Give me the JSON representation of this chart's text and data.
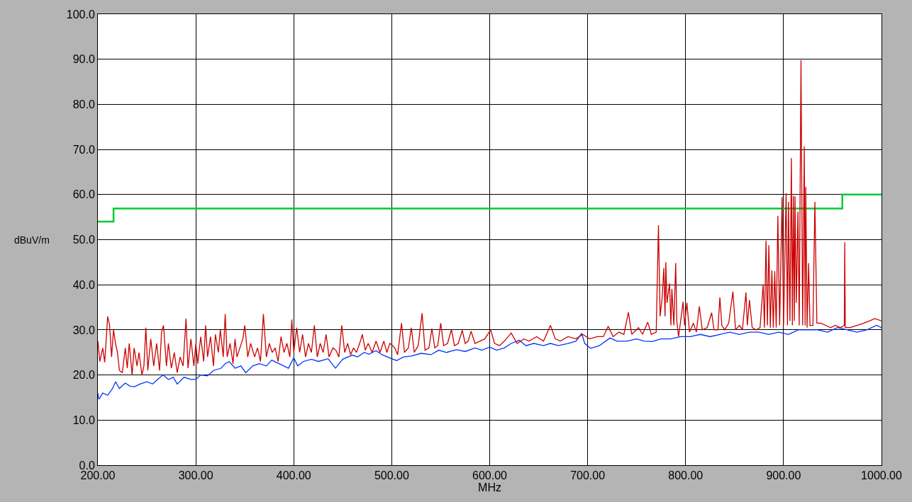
{
  "chart_data": {
    "type": "line",
    "xlabel": "MHz",
    "ylabel": "dBuV/m",
    "grid": true,
    "marker": "none",
    "line_style": "solid",
    "xlim": [
      200,
      1000
    ],
    "ylim": [
      0,
      100
    ],
    "xticks": [
      {
        "value": 200,
        "label": "200.00"
      },
      {
        "value": 300,
        "label": "300.00"
      },
      {
        "value": 400,
        "label": "400.00"
      },
      {
        "value": 500,
        "label": "500.00"
      },
      {
        "value": 600,
        "label": "600.00"
      },
      {
        "value": 700,
        "label": "700.00"
      },
      {
        "value": 800,
        "label": "800.00"
      },
      {
        "value": 900,
        "label": "900.00"
      },
      {
        "value": 1000,
        "label": "1000.00"
      }
    ],
    "yticks": [
      {
        "value": 0,
        "label": "0.0"
      },
      {
        "value": 10,
        "label": "10.0"
      },
      {
        "value": 20,
        "label": "20.0"
      },
      {
        "value": 30,
        "label": "30.0"
      },
      {
        "value": 40,
        "label": "40.0"
      },
      {
        "value": 50,
        "label": "50.0"
      },
      {
        "value": 60,
        "label": "60.0"
      },
      {
        "value": 70,
        "label": "70.0"
      },
      {
        "value": 80,
        "label": "80.0"
      },
      {
        "value": 90,
        "label": "90.0"
      },
      {
        "value": 100,
        "label": "100.0"
      }
    ],
    "series": [
      {
        "type": "step",
        "color": "#00cc33",
        "x": [
          200,
          216,
          960,
          1000
        ],
        "values": [
          54,
          56.9,
          60,
          60
        ]
      },
      {
        "color": "#0033ff",
        "x": [
          200,
          201,
          205,
          210,
          215,
          218,
          222,
          228,
          233,
          237.6,
          243,
          250,
          256,
          262,
          266.6,
          272,
          277,
          281,
          288,
          295,
          300,
          305,
          312,
          318,
          325.8,
          330,
          334,
          340,
          346,
          351,
          358,
          365,
          372,
          377.5,
          385,
          394.6,
          400,
          404,
          410,
          418,
          425,
          435,
          442.6,
          450,
          459.7,
          465,
          472,
          476.6,
          484,
          490,
          500,
          505,
          512,
          520,
          530,
          540,
          548,
          556,
          566,
          575,
          585,
          592,
          600,
          607,
          615,
          622,
          630,
          637,
          645,
          655,
          662,
          670,
          680,
          688,
          694,
          697,
          703,
          712,
          722.8,
          730,
          740,
          750,
          758,
          766,
          775,
          785,
          795,
          805,
          815,
          825,
          835,
          845,
          855,
          865,
          875,
          885,
          895,
          905,
          915,
          925,
          935,
          945,
          955,
          965,
          975,
          985,
          995,
          1000
        ],
        "values": [
          15.9,
          14.6,
          16,
          15.5,
          17,
          18.5,
          17,
          18.2,
          17.5,
          17.4,
          18,
          18.5,
          18,
          19.2,
          20,
          19,
          19.5,
          18,
          19.5,
          19,
          19,
          20,
          19.8,
          21,
          21.5,
          22.5,
          23,
          21.5,
          22,
          20.5,
          22,
          22.5,
          22,
          23.3,
          22.5,
          21.5,
          23.8,
          22,
          23,
          23.5,
          23,
          23.6,
          21.5,
          23.5,
          24.4,
          24,
          25,
          24.6,
          25.4,
          24.5,
          23.6,
          23.2,
          24,
          24.2,
          24.8,
          24.5,
          25.5,
          25,
          25.6,
          25.2,
          26,
          25.5,
          26.2,
          25.5,
          26,
          27,
          27.7,
          26.5,
          27,
          26.5,
          27,
          26.5,
          27,
          27.5,
          29.2,
          27,
          25.9,
          26.5,
          28.2,
          27.5,
          27.5,
          28,
          27.5,
          27.4,
          28,
          28,
          28.5,
          28.5,
          29,
          28.5,
          29,
          29.5,
          29,
          29.5,
          29.5,
          29,
          29.5,
          29,
          30,
          30,
          30,
          29.5,
          30.5,
          30,
          29.5,
          30,
          31,
          30.5
        ]
      },
      {
        "color": "#cc0000",
        "x": [
          200,
          202,
          205,
          207,
          209,
          210,
          212,
          214,
          216,
          218,
          220,
          222,
          225,
          228,
          230,
          232,
          235,
          237,
          240,
          242,
          245,
          247,
          249,
          251,
          254,
          257,
          260,
          263,
          265,
          267,
          270,
          272,
          275,
          278,
          281,
          284,
          287,
          290,
          292,
          295,
          298,
          300,
          302,
          305,
          308,
          310,
          312,
          315,
          318,
          320,
          323,
          325,
          328,
          330,
          332,
          335,
          338,
          340,
          342,
          345,
          348,
          350,
          353,
          356,
          360,
          363,
          366,
          369,
          372,
          375,
          378,
          381,
          384,
          387,
          390,
          393,
          396,
          398,
          400,
          403,
          406,
          409,
          412,
          415,
          418,
          421,
          424,
          427,
          430,
          433,
          436,
          440,
          443,
          446,
          449,
          452,
          455,
          458,
          461,
          464,
          468,
          470,
          473,
          476,
          480,
          484,
          488,
          492,
          495,
          498,
          500,
          503,
          506,
          510,
          513,
          517,
          520,
          523,
          527,
          531,
          534,
          538,
          541,
          544,
          547,
          550,
          553,
          557,
          561,
          564,
          568,
          572,
          575,
          578,
          581,
          585,
          590,
          595,
          601,
          605,
          610,
          615,
          622,
          628,
          635,
          640,
          648,
          655,
          662,
          667,
          672,
          680,
          688,
          695,
          702,
          710,
          716,
          721,
          726,
          732,
          737,
          741.6,
          745,
          752,
          756,
          761.4,
          765,
          770,
          772.3,
          774,
          776,
          777.8,
          779,
          779.8,
          781,
          783.6,
          785,
          786,
          788,
          789.9,
          791,
          792.8,
          795,
          797.4,
          799,
          801.3,
          804,
          808,
          811,
          814,
          817,
          822,
          826.6,
          829,
          833,
          835,
          837,
          840,
          844,
          848.3,
          851,
          855,
          858,
          861.6,
          863,
          865.2,
          868,
          872,
          876,
          879.2,
          880.5,
          882.1,
          883.5,
          885,
          886.5,
          888.1,
          889.5,
          891,
          892.5,
          894.2,
          896,
          898.5,
          900,
          902.6,
          904,
          905,
          906.5,
          908,
          909,
          910,
          911,
          911.7,
          913,
          914.7,
          916,
          917.8,
          919.5,
          921.2,
          922,
          922.7,
          924,
          925.6,
          927,
          930,
          932,
          934,
          938,
          943,
          948,
          953,
          958,
          962,
          962.5,
          963,
          968,
          975,
          982,
          988,
          993,
          1000
        ],
        "values": [
          27.5,
          23,
          26,
          22.8,
          29.5,
          33,
          31,
          24,
          30,
          27,
          25,
          21,
          20.5,
          26,
          21.5,
          27,
          20,
          26,
          22,
          25,
          20,
          22,
          30.5,
          21,
          28,
          22,
          27,
          21,
          29.5,
          31,
          22,
          27,
          21.5,
          25,
          20.5,
          24,
          22,
          32.5,
          21.5,
          28,
          22,
          27,
          22.5,
          28.5,
          23,
          31,
          24,
          28.5,
          22,
          29,
          25,
          30,
          24,
          33.5,
          24,
          27,
          22.5,
          28,
          24,
          26,
          28,
          31,
          24,
          27,
          24,
          26,
          23,
          33.5,
          24,
          27,
          25,
          26,
          23,
          28.5,
          25,
          27,
          24,
          32.3,
          25,
          30.5,
          25,
          29,
          24,
          27,
          25,
          31,
          24,
          27,
          25,
          29,
          24,
          26,
          25.5,
          24,
          31,
          25,
          27,
          24.5,
          26,
          25,
          27.5,
          29,
          25.5,
          27,
          25,
          27.5,
          25,
          27.5,
          25,
          27,
          26.7,
          26,
          24.5,
          31.5,
          25,
          26,
          30.5,
          25,
          26.5,
          33.7,
          25.5,
          26,
          30.3,
          26,
          26.5,
          31.5,
          26.5,
          27,
          30.1,
          26.5,
          27,
          29.9,
          27,
          27.5,
          29.7,
          27,
          27.5,
          28,
          30,
          27,
          26.5,
          27.5,
          29.3,
          27,
          28,
          27.5,
          28.5,
          27.5,
          31,
          28,
          27.5,
          28.5,
          28,
          29,
          28,
          28.5,
          28.5,
          30.8,
          28.5,
          29.5,
          29,
          33.9,
          29,
          30.5,
          29,
          31.7,
          29,
          29.5,
          53.2,
          33,
          37,
          43.7,
          33,
          45,
          36,
          40.3,
          31,
          39.1,
          31,
          44.8,
          32,
          28.5,
          32,
          36.2,
          31,
          36,
          29.5,
          31.5,
          29.5,
          35.2,
          30,
          30.5,
          33.8,
          30,
          30,
          37.2,
          31,
          30,
          31.5,
          38.5,
          30,
          31,
          30,
          38.3,
          31,
          36.6,
          30.5,
          30,
          30.5,
          40.1,
          30.5,
          49.8,
          31,
          48.8,
          30.5,
          43.2,
          30.5,
          43,
          30.5,
          55.3,
          31,
          59.4,
          31,
          60.3,
          31,
          58.4,
          32,
          68.1,
          31,
          59.7,
          32,
          59.6,
          36,
          56.2,
          31,
          89.8,
          31,
          70.7,
          31,
          61.7,
          30.5,
          44.8,
          31,
          31,
          58.4,
          31.5,
          31.5,
          31,
          30.5,
          31,
          30.5,
          31,
          49.4,
          30.5,
          30.5,
          31,
          31.5,
          32,
          32.5,
          32
        ]
      }
    ]
  }
}
